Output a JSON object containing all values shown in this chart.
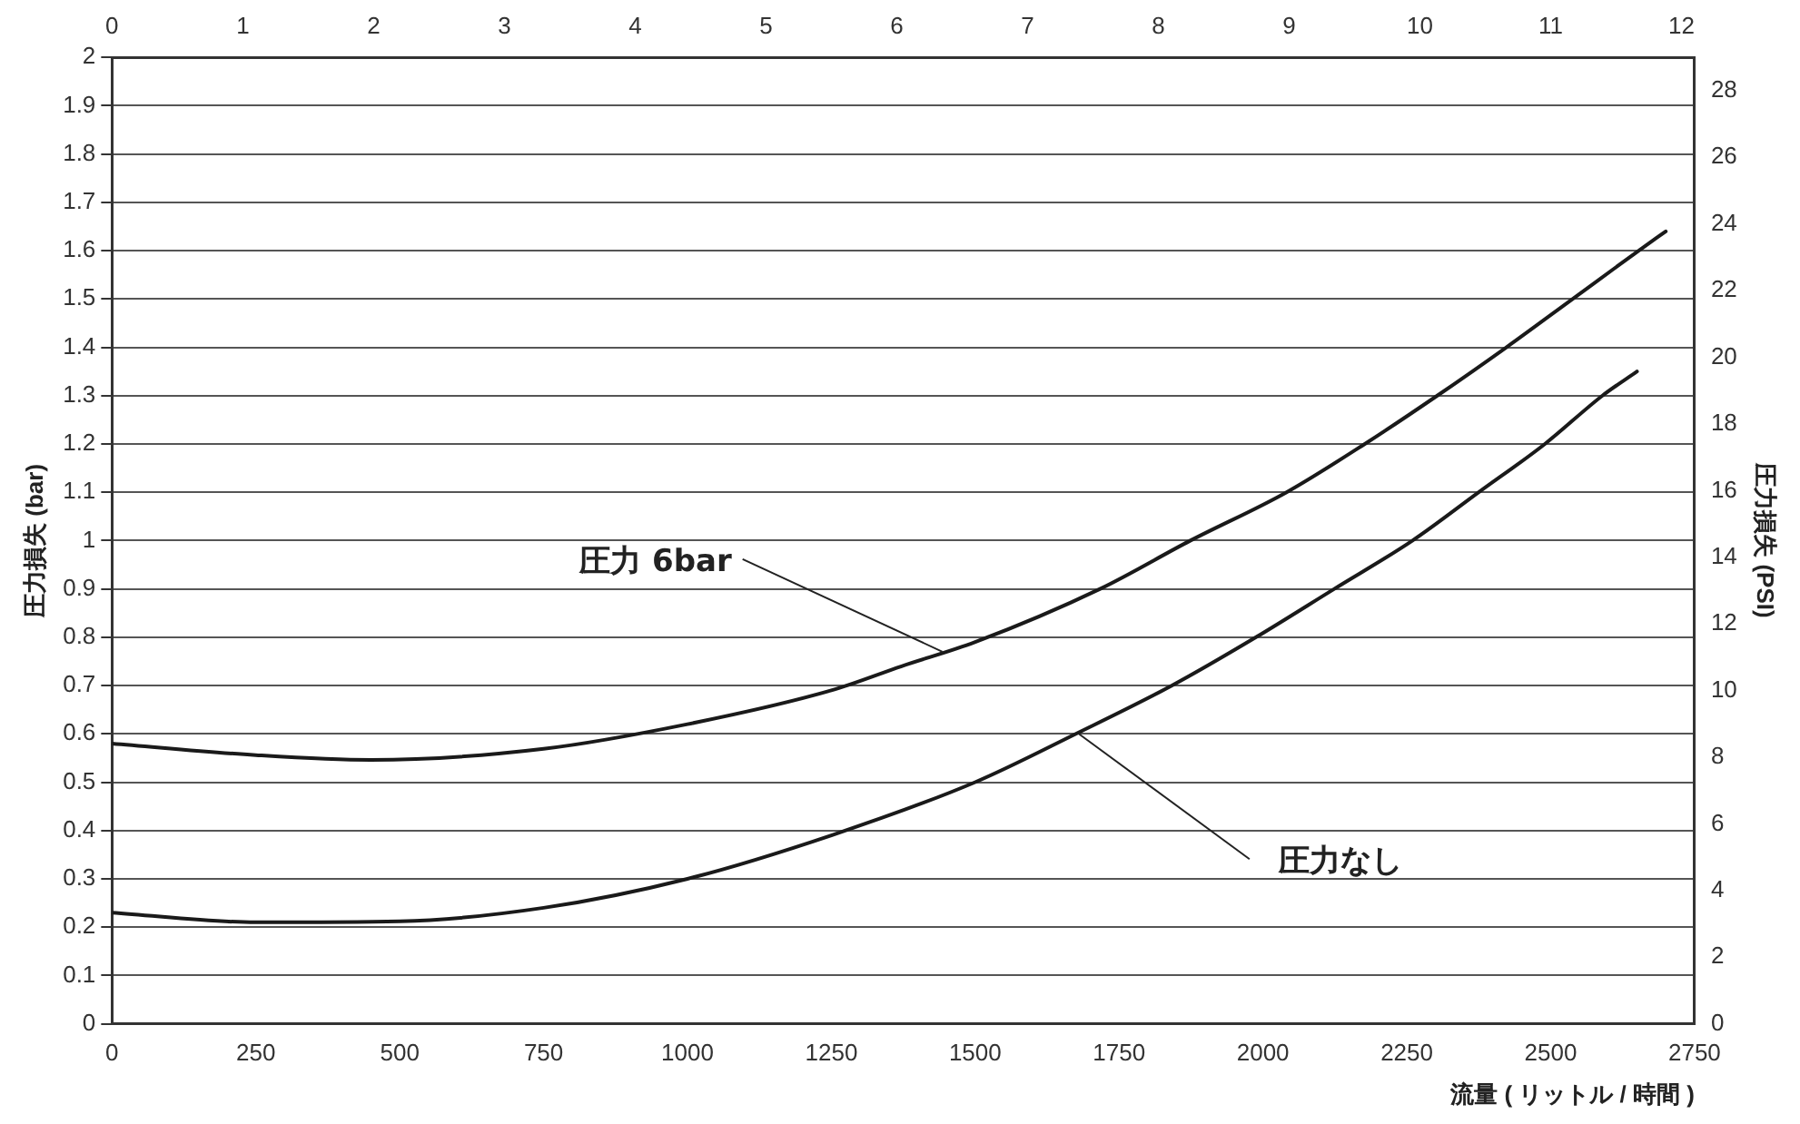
{
  "chart_data": {
    "type": "line",
    "xlabel": "流量 ( リットル / 時間 )",
    "ylabel": "圧力損失 (bar)",
    "y2label": "圧力損失 (PSI)",
    "xlim": [
      0,
      2750
    ],
    "xticks": [
      0,
      250,
      500,
      750,
      1000,
      1250,
      1500,
      1750,
      2000,
      2250,
      2500,
      2750
    ],
    "x2lim": [
      0,
      12.1
    ],
    "x2ticks": [
      0,
      1,
      2,
      3,
      4,
      5,
      6,
      7,
      8,
      9,
      10,
      11,
      12
    ],
    "ylim": [
      0,
      2
    ],
    "yticks": [
      0,
      0.1,
      0.2,
      0.3,
      0.4,
      0.5,
      0.6,
      0.7,
      0.8,
      0.9,
      1,
      1.1,
      1.2,
      1.3,
      1.4,
      1.5,
      1.6,
      1.7,
      1.8,
      1.9,
      2
    ],
    "y2lim": [
      0,
      29
    ],
    "y2ticks": [
      0,
      2,
      4,
      6,
      8,
      10,
      12,
      14,
      16,
      18,
      20,
      22,
      24,
      26,
      28
    ],
    "grid": "y",
    "marker": "none",
    "line_style": "solid",
    "legend": false,
    "series": [
      {
        "color": "#1a1a1a",
        "x": [
          0,
          250,
          450,
          750,
          1000,
          1250,
          1372,
          1500,
          1717,
          1874,
          2041,
          2177,
          2303,
          2423,
          2538,
          2653,
          2700
        ],
        "values": [
          0.58,
          0.556,
          0.546,
          0.569,
          0.62,
          0.69,
          0.74,
          0.79,
          0.9,
          1.0,
          1.1,
          1.2,
          1.3,
          1.4,
          1.5,
          1.6,
          1.64
        ]
      },
      {
        "color": "#1a1a1a",
        "x": [
          0,
          250,
          500,
          750,
          1000,
          1250,
          1500,
          1675,
          1842,
          1988,
          2124,
          2260,
          2375,
          2490,
          2590,
          2650
        ],
        "values": [
          0.23,
          0.21,
          0.212,
          0.24,
          0.3,
          0.39,
          0.5,
          0.6,
          0.7,
          0.8,
          0.9,
          1.0,
          1.1,
          1.2,
          1.3,
          1.35
        ]
      }
    ],
    "annotations": [
      {
        "text": "圧力 6bar",
        "x": 1443,
        "y": 0.77
      },
      {
        "text": "圧力なし",
        "x": 1680,
        "y": 0.6
      }
    ]
  }
}
